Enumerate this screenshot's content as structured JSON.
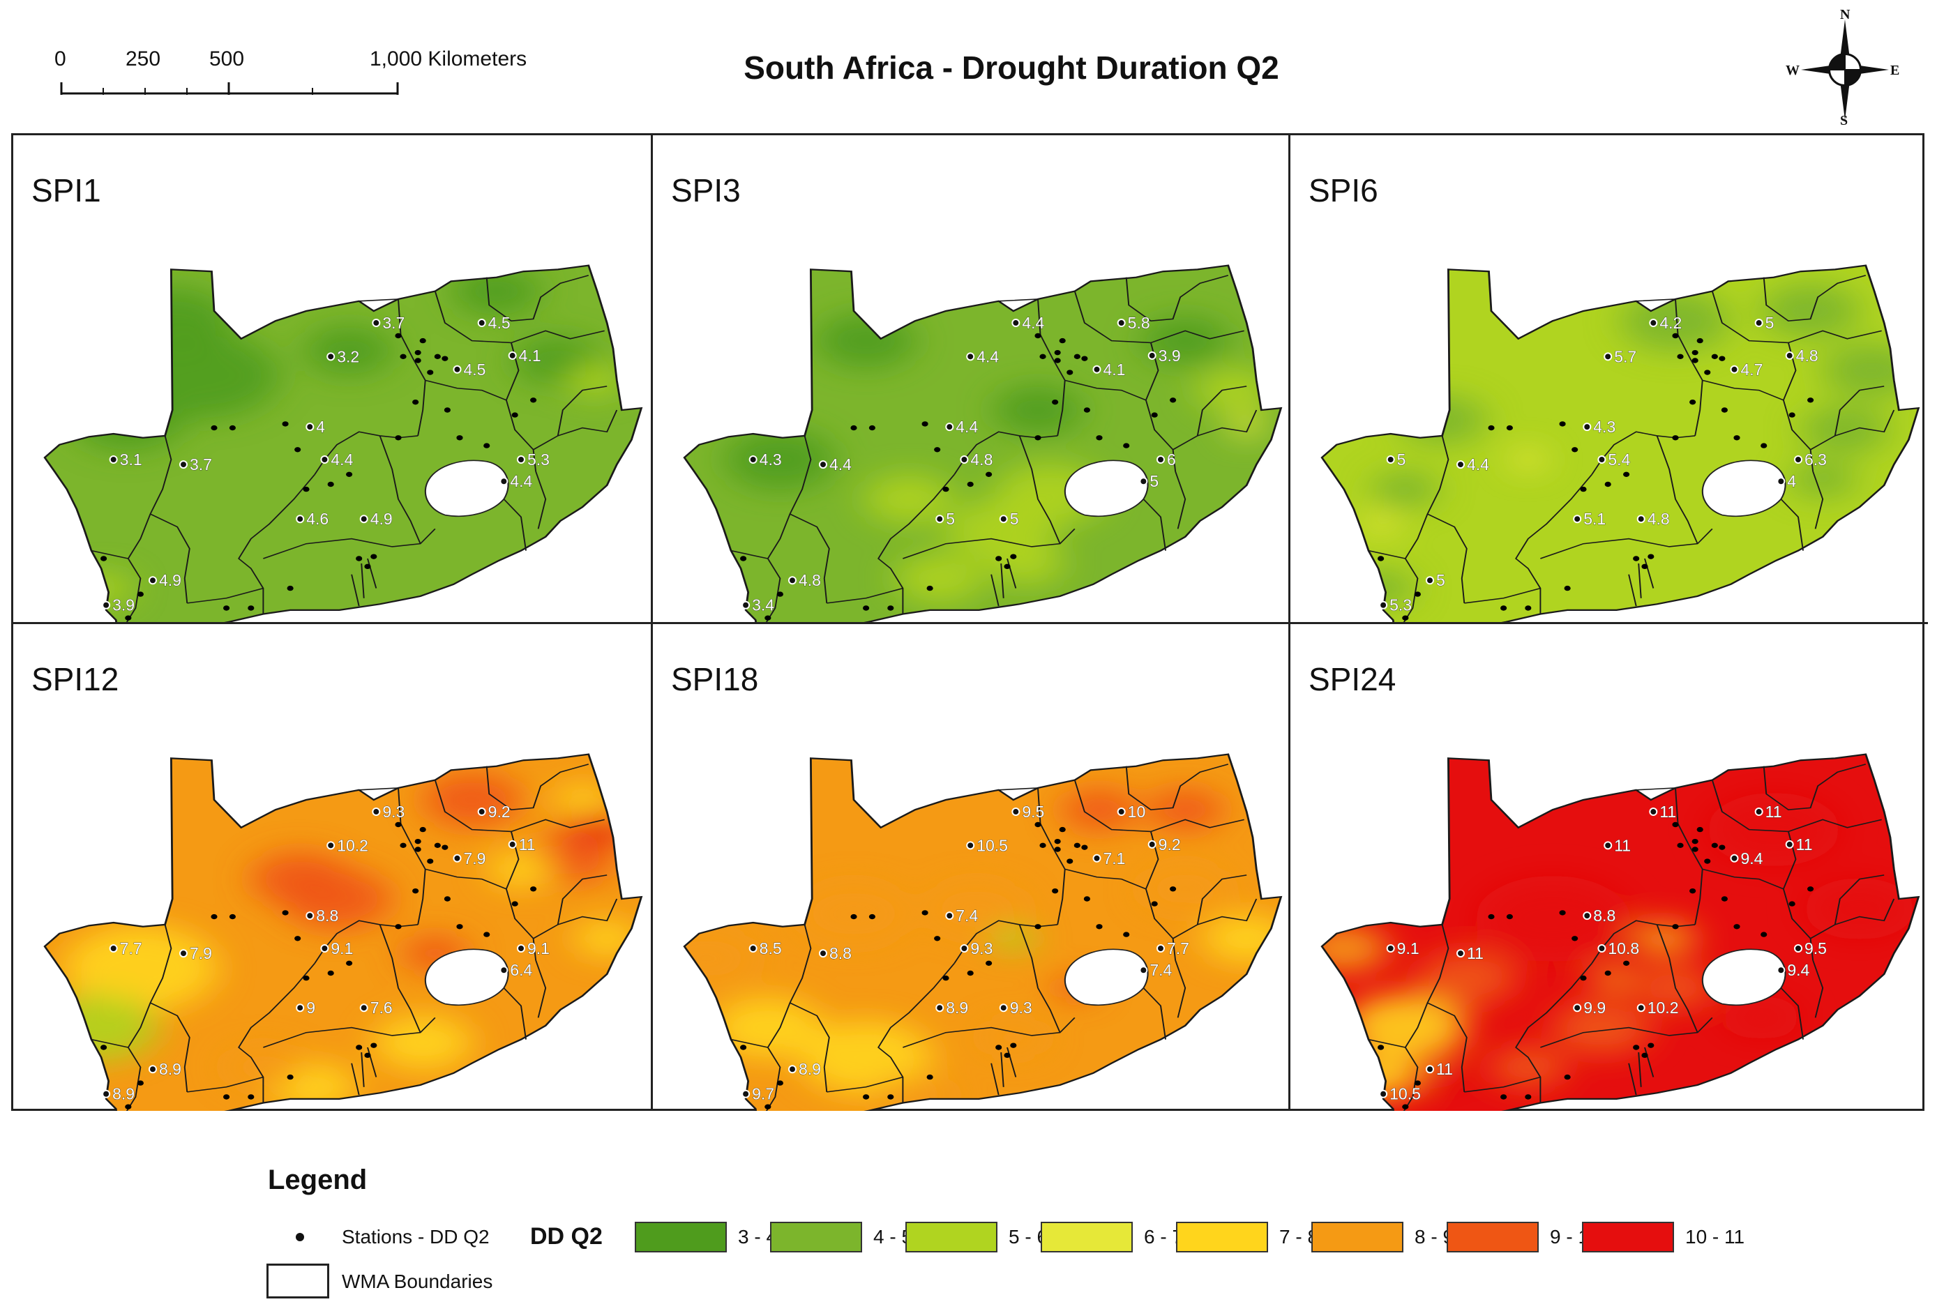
{
  "title": "South Africa - Drought Duration Q2",
  "scale": {
    "labels": [
      "0",
      "250",
      "500",
      "1,000 Kilometers"
    ]
  },
  "compass": {
    "n": "N",
    "s": "S",
    "e": "E",
    "w": "W"
  },
  "colors": {
    "c34": "#4f9c1d",
    "c45": "#7cb52c",
    "c56": "#b0d420",
    "c67": "#e6e838",
    "c78": "#ffd51c",
    "c89": "#f59a14",
    "c910": "#ef5614",
    "c1011": "#e50e0e"
  },
  "panels": [
    {
      "title": "SPI1",
      "base": "c45",
      "values": [
        "3.7",
        "4.5",
        "3.2",
        "4.1",
        "4.5",
        "4",
        "3.1",
        "3.7",
        "4.4",
        "5.3",
        "4.4",
        "4.6",
        "4.9",
        "4.9",
        "3.9"
      ]
    },
    {
      "title": "SPI3",
      "base": "c45",
      "values": [
        "4.4",
        "5.8",
        "4.4",
        "3.9",
        "4.1",
        "4.4",
        "4.3",
        "4.4",
        "4.8",
        "6",
        "5",
        "5",
        "5",
        "4.8",
        "3.4"
      ]
    },
    {
      "title": "SPI6",
      "base": "c56",
      "values": [
        "4.2",
        "5",
        "5.7",
        "4.8",
        "4.7",
        "4.3",
        "5",
        "4.4",
        "5.4",
        "6.3",
        "4",
        "5.1",
        "4.8",
        "5",
        "5.3"
      ]
    },
    {
      "title": "SPI12",
      "base": "c89",
      "values": [
        "9.3",
        "9.2",
        "10.2",
        "11",
        "7.9",
        "8.8",
        "7.7",
        "7.9",
        "9.1",
        "9.1",
        "6.4",
        "9",
        "7.6",
        "8.9",
        "8.9"
      ]
    },
    {
      "title": "SPI18",
      "base": "c89",
      "values": [
        "9.5",
        "10",
        "10.5",
        "9.2",
        "7.1",
        "7.4",
        "8.5",
        "8.8",
        "9.3",
        "7.7",
        "7.4",
        "8.9",
        "9.3",
        "8.9",
        "9.7"
      ]
    },
    {
      "title": "SPI24",
      "base": "c1011",
      "values": [
        "11",
        "11",
        "11",
        "11",
        "9.4",
        "8.8",
        "9.1",
        "11",
        "10.8",
        "9.5",
        "9.4",
        "9.9",
        "10.2",
        "11",
        "10.5"
      ]
    }
  ],
  "legend": {
    "title": "Legend",
    "stations": "Stations - DD Q2",
    "dd_label": "DD Q2",
    "wma": "WMA Boundaries",
    "classes": [
      {
        "label": "3 - 4",
        "color": "#4f9c1d"
      },
      {
        "label": "4 - 5",
        "color": "#7cb52c"
      },
      {
        "label": "5 - 6",
        "color": "#b0d420"
      },
      {
        "label": "6 - 7",
        "color": "#e6e838"
      },
      {
        "label": "7 - 8",
        "color": "#ffd51c"
      },
      {
        "label": "8 - 9",
        "color": "#f59a14"
      },
      {
        "label": "9 - 10",
        "color": "#ef5614"
      },
      {
        "label": "10 - 11",
        "color": "#e50e0e"
      }
    ]
  }
}
